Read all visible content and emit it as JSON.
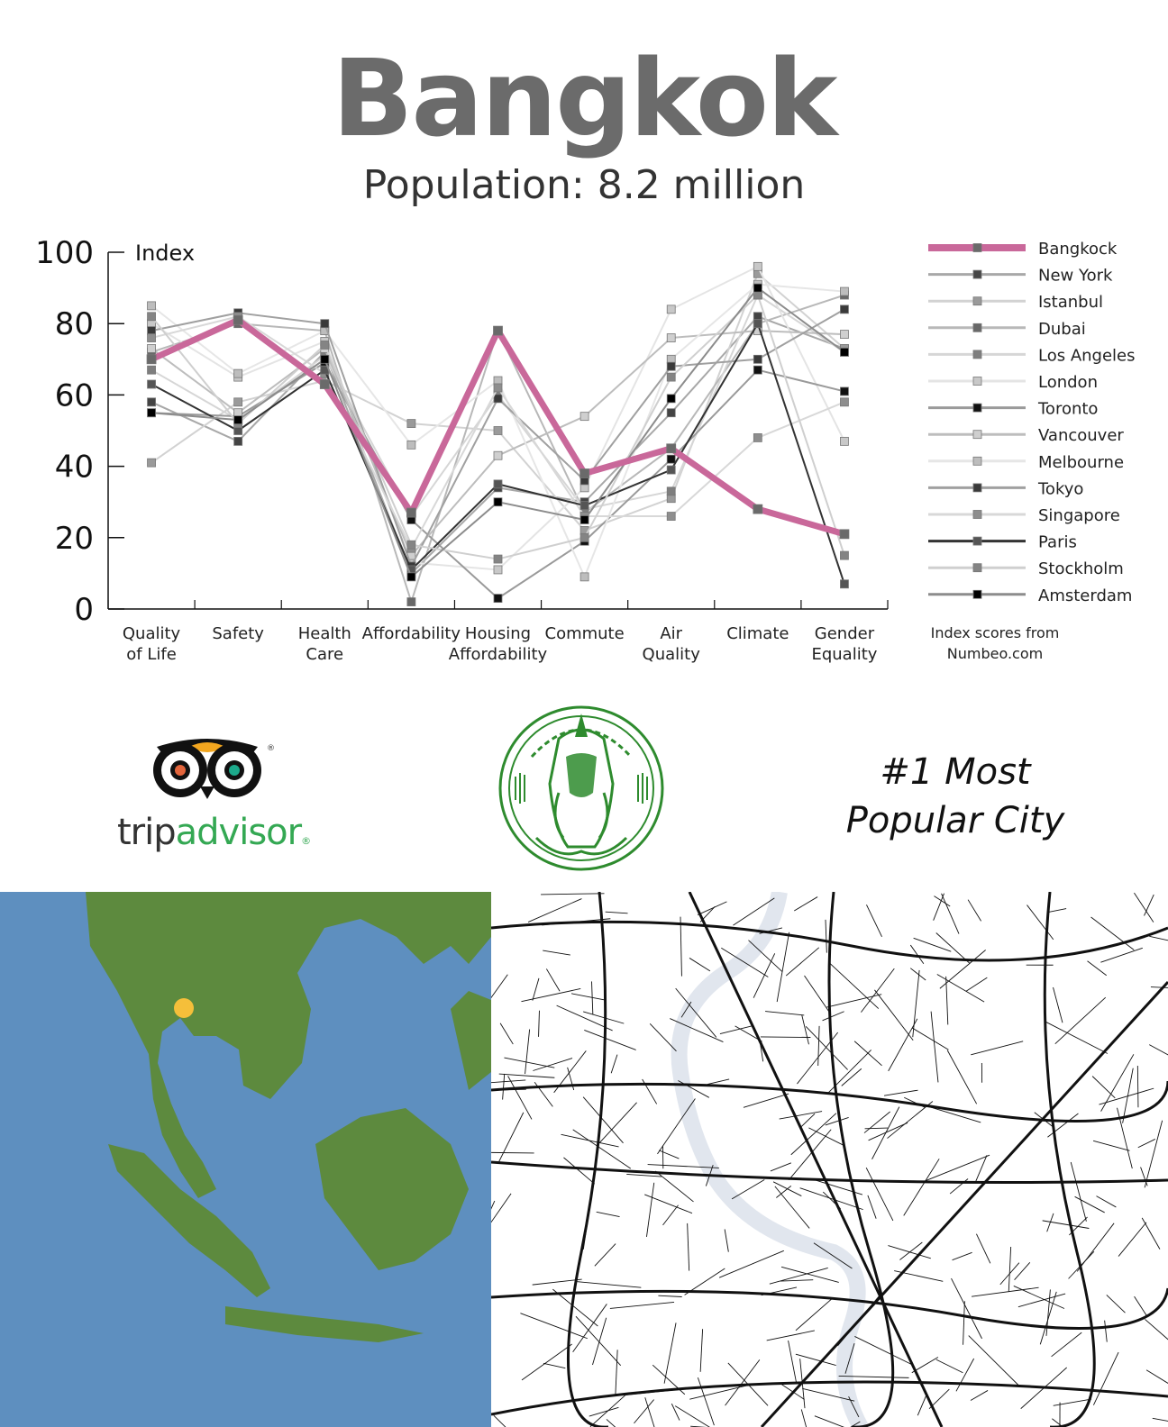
{
  "header": {
    "title": "Bangkok",
    "subtitle": "Population: 8.2 million"
  },
  "footnote": [
    "Index scores from",
    "Numbeo.com"
  ],
  "popular": [
    "#1 Most",
    "Popular City"
  ],
  "tripadvisor": {
    "word_trip": "trip",
    "word_advisor": "advisor"
  },
  "colors": {
    "highlight": "#c9689a",
    "ta_green": "#34a853",
    "ta_orange": "#f2a61f",
    "seal_green": "#2e8b2e",
    "sea": "#5e8fbf",
    "land": "#5d8a3e",
    "river": "#e1e6ee",
    "marker": "#f5bf3a"
  },
  "chart_data": {
    "type": "line",
    "y_axis_label": "Index",
    "ylim": [
      0,
      100
    ],
    "yticks": [
      0,
      20,
      40,
      60,
      80,
      100
    ],
    "categories": [
      "Quality\nof Life",
      "Safety",
      "Health\nCare",
      "Affordability",
      "Housing\nAffordability",
      "Commute",
      "Air\nQuality",
      "Climate",
      "Gender\nEquality"
    ],
    "series": [
      {
        "name": "Bangkock",
        "values": [
          70,
          81,
          63,
          27,
          78,
          38,
          45,
          28,
          21
        ],
        "color": "#c9689a",
        "highlight": true,
        "marker": "#6a6a6a"
      },
      {
        "name": "New York",
        "values": [
          58,
          47,
          72,
          10,
          34,
          30,
          55,
          82,
          73
        ],
        "color": "#a8a8a8",
        "marker": "#444444"
      },
      {
        "name": "Istanbul",
        "values": [
          41,
          58,
          64,
          52,
          50,
          22,
          31,
          94,
          73
        ],
        "color": "#d2d2d2",
        "marker": "#9a9a9a"
      },
      {
        "name": "Dubai",
        "values": [
          72,
          80,
          78,
          2,
          78,
          27,
          45,
          80,
          88
        ],
        "color": "#b8b8b8",
        "marker": "#686868"
      },
      {
        "name": "Los Angeles",
        "values": [
          67,
          53,
          71,
          26,
          60,
          28,
          33,
          88,
          72
        ],
        "color": "#d6d6d6",
        "marker": "#7e7e7e"
      },
      {
        "name": "London",
        "values": [
          80,
          65,
          75,
          13,
          11,
          34,
          84,
          96,
          47
        ],
        "color": "#e4e4e4",
        "marker": "#c8c8c8"
      },
      {
        "name": "Toronto",
        "values": [
          55,
          54,
          69,
          25,
          3,
          19,
          42,
          67,
          61
        ],
        "color": "#9a9a9a",
        "marker": "#111111"
      },
      {
        "name": "Vancouver",
        "values": [
          73,
          55,
          73,
          15,
          43,
          54,
          76,
          78,
          77
        ],
        "color": "#bdbdbd",
        "marker": "#cfcfcf"
      },
      {
        "name": "Melbourne",
        "values": [
          85,
          66,
          78,
          46,
          64,
          9,
          70,
          91,
          89
        ],
        "color": "#e6e6e6",
        "marker": "#bdbdbd"
      },
      {
        "name": "Tokyo",
        "values": [
          78,
          83,
          80,
          12,
          59,
          36,
          68,
          70,
          84
        ],
        "color": "#a0a0a0",
        "marker": "#3a3a3a"
      },
      {
        "name": "Singapore",
        "values": [
          76,
          82,
          66,
          17,
          62,
          26,
          26,
          48,
          58
        ],
        "color": "#d8d8d8",
        "marker": "#8e8e8e"
      },
      {
        "name": "Paris",
        "values": [
          63,
          50,
          67,
          11,
          35,
          29,
          39,
          80,
          7
        ],
        "color": "#333333",
        "marker": "#555555"
      },
      {
        "name": "Stockholm",
        "values": [
          82,
          52,
          74,
          18,
          14,
          20,
          65,
          88,
          15
        ],
        "color": "#cfcfcf",
        "marker": "#848484"
      },
      {
        "name": "Amsterdam",
        "values": [
          55,
          53,
          70,
          9,
          30,
          25,
          59,
          90,
          72
        ],
        "color": "#8c8c8c",
        "marker": "#000000"
      }
    ]
  }
}
